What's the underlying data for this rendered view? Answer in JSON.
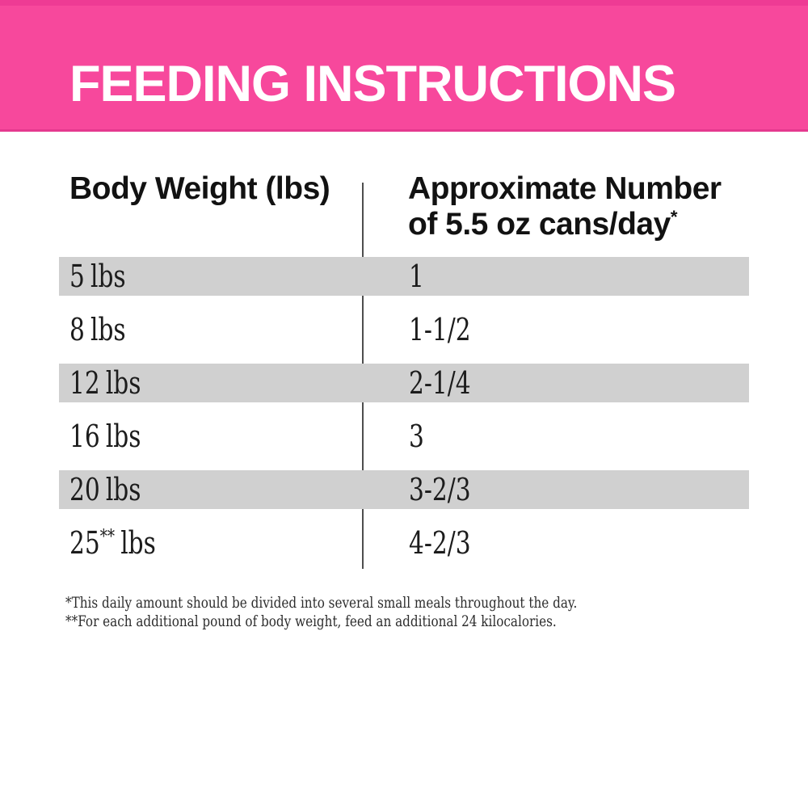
{
  "header": {
    "title": "FEEDING INSTRUCTIONS",
    "background_color": "#f7489c",
    "text_color": "#ffffff"
  },
  "table": {
    "columns": [
      {
        "label": "Body Weight (lbs)"
      },
      {
        "label_line1": "Approximate Number",
        "label_line2": "of 5.5 oz cans/day",
        "label_sup": "*"
      }
    ],
    "rows": [
      {
        "weight": "5",
        "weight_sup": "",
        "weight_unit": "lbs",
        "cans": "1"
      },
      {
        "weight": "8",
        "weight_sup": "",
        "weight_unit": "lbs",
        "cans": "1-1/2"
      },
      {
        "weight": "12",
        "weight_sup": "",
        "weight_unit": "lbs",
        "cans": "2-1/4"
      },
      {
        "weight": "16",
        "weight_sup": "",
        "weight_unit": "lbs",
        "cans": "3"
      },
      {
        "weight": "20",
        "weight_sup": "",
        "weight_unit": "lbs",
        "cans": "3-2/3"
      },
      {
        "weight": "25",
        "weight_sup": "**",
        "weight_unit": "lbs",
        "cans": "4-2/3"
      }
    ],
    "row_highlight_color": "#d0d0d0",
    "divider_color": "#4e4e4e"
  },
  "footnotes": [
    "*This daily amount should be divided into several small meals throughout the day.",
    "**For each additional pound of body weight, feed an additional 24 kilocalories."
  ]
}
